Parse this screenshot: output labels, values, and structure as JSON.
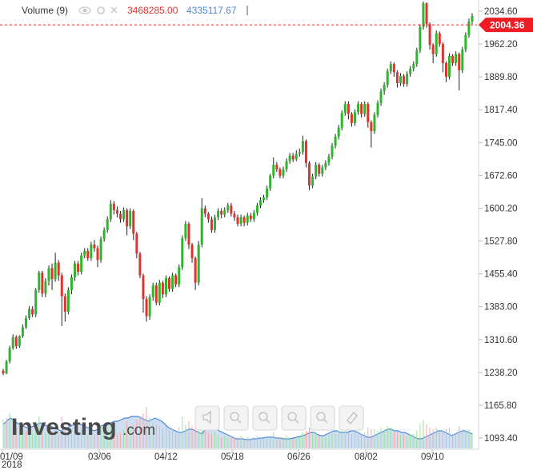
{
  "chart_data": {
    "type": "candlestick",
    "y_ticks": [
      "2034.60",
      "1962.20",
      "1889.80",
      "1817.40",
      "1745.00",
      "1672.60",
      "1600.20",
      "1527.80",
      "1455.40",
      "1383.00",
      "1310.60",
      "1238.20",
      "1165.80",
      "1093.40"
    ],
    "x_ticks": [
      "01/09",
      "03/06",
      "04/12",
      "05/18",
      "06/26",
      "08/02",
      "09/10"
    ],
    "year_label": "2018",
    "ylim": [
      1060,
      2060
    ],
    "last_price": "2004.36",
    "last_price_value": 2004.36,
    "volume": {
      "title": "Volume (9)",
      "value_down": "3468285.00",
      "value_up": "4335117.67"
    },
    "colors": {
      "up": "#2db52d",
      "down": "#e0322f",
      "wick": "#222222",
      "price_tag": "#ee1c24",
      "volume_area": "#c7d9f1",
      "volume_line": "#4a86d8"
    },
    "logo": {
      "main": "Investing",
      "suffix": ".com"
    },
    "candles": [
      [
        1242,
        1236,
        1246,
        1232
      ],
      [
        1236,
        1262,
        1266,
        1234
      ],
      [
        1262,
        1292,
        1297,
        1258
      ],
      [
        1292,
        1316,
        1322,
        1288
      ],
      [
        1316,
        1296,
        1320,
        1290
      ],
      [
        1296,
        1318,
        1320,
        1292
      ],
      [
        1318,
        1338,
        1344,
        1314
      ],
      [
        1338,
        1358,
        1364,
        1334
      ],
      [
        1358,
        1378,
        1384,
        1354
      ],
      [
        1378,
        1366,
        1384,
        1360
      ],
      [
        1366,
        1420,
        1424,
        1360
      ],
      [
        1420,
        1458,
        1462,
        1414
      ],
      [
        1458,
        1412,
        1462,
        1404
      ],
      [
        1412,
        1440,
        1446,
        1404
      ],
      [
        1440,
        1468,
        1474,
        1430
      ],
      [
        1468,
        1444,
        1478,
        1420
      ],
      [
        1444,
        1480,
        1502,
        1438
      ],
      [
        1480,
        1452,
        1486,
        1440
      ],
      [
        1452,
        1406,
        1458,
        1340
      ],
      [
        1406,
        1372,
        1412,
        1350
      ],
      [
        1372,
        1420,
        1426,
        1366
      ],
      [
        1420,
        1448,
        1454,
        1410
      ],
      [
        1448,
        1478,
        1484,
        1440
      ],
      [
        1478,
        1460,
        1484,
        1452
      ],
      [
        1460,
        1496,
        1502,
        1454
      ],
      [
        1496,
        1506,
        1512,
        1490
      ],
      [
        1506,
        1490,
        1512,
        1484
      ],
      [
        1490,
        1520,
        1526,
        1484
      ],
      [
        1520,
        1512,
        1530,
        1504
      ],
      [
        1512,
        1486,
        1518,
        1470
      ],
      [
        1486,
        1532,
        1538,
        1480
      ],
      [
        1532,
        1552,
        1558,
        1526
      ],
      [
        1552,
        1576,
        1582,
        1546
      ],
      [
        1576,
        1610,
        1618,
        1570
      ],
      [
        1610,
        1596,
        1616,
        1586
      ],
      [
        1596,
        1588,
        1604,
        1580
      ],
      [
        1588,
        1576,
        1594,
        1568
      ],
      [
        1576,
        1596,
        1602,
        1570
      ],
      [
        1596,
        1560,
        1600,
        1540
      ],
      [
        1560,
        1594,
        1600,
        1554
      ],
      [
        1594,
        1544,
        1598,
        1530
      ],
      [
        1544,
        1500,
        1548,
        1490
      ],
      [
        1500,
        1452,
        1504,
        1446
      ],
      [
        1452,
        1400,
        1456,
        1370
      ],
      [
        1400,
        1362,
        1406,
        1350
      ],
      [
        1362,
        1404,
        1410,
        1354
      ],
      [
        1404,
        1430,
        1436,
        1396
      ],
      [
        1430,
        1392,
        1436,
        1386
      ],
      [
        1392,
        1436,
        1442,
        1386
      ],
      [
        1436,
        1410,
        1440,
        1402
      ],
      [
        1410,
        1446,
        1452,
        1404
      ],
      [
        1446,
        1422,
        1450,
        1416
      ],
      [
        1422,
        1452,
        1458,
        1416
      ],
      [
        1452,
        1432,
        1456,
        1426
      ],
      [
        1432,
        1470,
        1476,
        1426
      ],
      [
        1470,
        1534,
        1540,
        1464
      ],
      [
        1534,
        1566,
        1572,
        1528
      ],
      [
        1566,
        1520,
        1570,
        1510
      ],
      [
        1520,
        1490,
        1524,
        1480
      ],
      [
        1490,
        1436,
        1494,
        1420
      ],
      [
        1436,
        1520,
        1528,
        1430
      ],
      [
        1520,
        1600,
        1622,
        1514
      ],
      [
        1600,
        1588,
        1606,
        1580
      ],
      [
        1588,
        1576,
        1592,
        1568
      ],
      [
        1576,
        1552,
        1582,
        1546
      ],
      [
        1552,
        1580,
        1586,
        1546
      ],
      [
        1580,
        1594,
        1600,
        1574
      ],
      [
        1594,
        1586,
        1600,
        1578
      ],
      [
        1586,
        1596,
        1602,
        1580
      ],
      [
        1596,
        1606,
        1612,
        1590
      ],
      [
        1606,
        1588,
        1612,
        1582
      ],
      [
        1588,
        1580,
        1594,
        1572
      ],
      [
        1580,
        1566,
        1586,
        1560
      ],
      [
        1566,
        1580,
        1586,
        1560
      ],
      [
        1580,
        1568,
        1584,
        1560
      ],
      [
        1568,
        1584,
        1590,
        1562
      ],
      [
        1584,
        1576,
        1590,
        1570
      ],
      [
        1576,
        1590,
        1596,
        1570
      ],
      [
        1590,
        1606,
        1612,
        1584
      ],
      [
        1606,
        1618,
        1624,
        1600
      ],
      [
        1618,
        1624,
        1630,
        1612
      ],
      [
        1624,
        1644,
        1650,
        1618
      ],
      [
        1644,
        1672,
        1676,
        1638
      ],
      [
        1672,
        1696,
        1712,
        1666
      ],
      [
        1696,
        1686,
        1702,
        1680
      ],
      [
        1686,
        1672,
        1690,
        1666
      ],
      [
        1672,
        1686,
        1692,
        1666
      ],
      [
        1686,
        1704,
        1710,
        1680
      ],
      [
        1704,
        1716,
        1722,
        1698
      ],
      [
        1716,
        1708,
        1722,
        1702
      ],
      [
        1708,
        1720,
        1728,
        1704
      ],
      [
        1720,
        1724,
        1732,
        1714
      ],
      [
        1724,
        1748,
        1760,
        1718
      ],
      [
        1748,
        1700,
        1752,
        1690
      ],
      [
        1700,
        1650,
        1704,
        1640
      ],
      [
        1650,
        1670,
        1676,
        1644
      ],
      [
        1670,
        1696,
        1702,
        1664
      ],
      [
        1696,
        1676,
        1700,
        1670
      ],
      [
        1676,
        1690,
        1696,
        1670
      ],
      [
        1690,
        1700,
        1706,
        1684
      ],
      [
        1700,
        1714,
        1720,
        1694
      ],
      [
        1714,
        1738,
        1744,
        1708
      ],
      [
        1738,
        1758,
        1764,
        1732
      ],
      [
        1758,
        1778,
        1784,
        1752
      ],
      [
        1778,
        1810,
        1816,
        1772
      ],
      [
        1810,
        1830,
        1836,
        1804
      ],
      [
        1830,
        1808,
        1836,
        1796
      ],
      [
        1808,
        1788,
        1812,
        1780
      ],
      [
        1788,
        1812,
        1818,
        1782
      ],
      [
        1812,
        1830,
        1836,
        1806
      ],
      [
        1830,
        1808,
        1834,
        1800
      ],
      [
        1808,
        1830,
        1836,
        1802
      ],
      [
        1830,
        1790,
        1834,
        1778
      ],
      [
        1790,
        1770,
        1794,
        1734
      ],
      [
        1770,
        1806,
        1812,
        1764
      ],
      [
        1806,
        1832,
        1838,
        1800
      ],
      [
        1832,
        1858,
        1864,
        1826
      ],
      [
        1858,
        1872,
        1878,
        1850
      ],
      [
        1872,
        1902,
        1908,
        1866
      ],
      [
        1902,
        1918,
        1924,
        1896
      ],
      [
        1918,
        1900,
        1922,
        1890
      ],
      [
        1900,
        1876,
        1904,
        1866
      ],
      [
        1876,
        1892,
        1898,
        1870
      ],
      [
        1892,
        1874,
        1896,
        1868
      ],
      [
        1874,
        1896,
        1902,
        1868
      ],
      [
        1896,
        1908,
        1914,
        1890
      ],
      [
        1908,
        1918,
        1924,
        1902
      ],
      [
        1918,
        1948,
        1954,
        1912
      ],
      [
        1948,
        2000,
        2006,
        1942
      ],
      [
        2000,
        2052,
        2056,
        1994
      ],
      [
        2052,
        2006,
        2054,
        1998
      ],
      [
        2006,
        1960,
        2010,
        1950
      ],
      [
        1960,
        1940,
        1964,
        1920
      ],
      [
        1940,
        1986,
        1992,
        1934
      ],
      [
        1986,
        1962,
        1990,
        1956
      ],
      [
        1962,
        1920,
        1966,
        1900
      ],
      [
        1920,
        1890,
        1924,
        1878
      ],
      [
        1890,
        1936,
        1942,
        1884
      ],
      [
        1936,
        1920,
        1940,
        1914
      ],
      [
        1920,
        1940,
        1946,
        1914
      ],
      [
        1940,
        1904,
        1944,
        1860
      ],
      [
        1904,
        1950,
        1956,
        1898
      ],
      [
        1950,
        1982,
        1988,
        1944
      ],
      [
        1982,
        2012,
        2018,
        1976
      ],
      [
        2012,
        2024,
        2030,
        2006
      ]
    ],
    "vol_bars": [
      [
        36,
        1
      ],
      [
        38,
        0
      ],
      [
        44,
        1
      ],
      [
        30,
        0
      ],
      [
        26,
        0
      ],
      [
        24,
        1
      ],
      [
        22,
        1
      ],
      [
        22,
        0
      ],
      [
        24,
        1
      ],
      [
        18,
        1
      ],
      [
        34,
        1
      ],
      [
        40,
        1
      ],
      [
        20,
        0
      ],
      [
        20,
        1
      ],
      [
        28,
        1
      ],
      [
        22,
        0
      ],
      [
        30,
        1
      ],
      [
        18,
        0
      ],
      [
        40,
        0
      ],
      [
        26,
        0
      ],
      [
        20,
        1
      ],
      [
        22,
        1
      ],
      [
        30,
        1
      ],
      [
        18,
        0
      ],
      [
        24,
        1
      ],
      [
        20,
        1
      ],
      [
        16,
        0
      ],
      [
        22,
        1
      ],
      [
        18,
        0
      ],
      [
        26,
        0
      ],
      [
        28,
        1
      ],
      [
        24,
        1
      ],
      [
        22,
        1
      ],
      [
        30,
        1
      ],
      [
        26,
        0
      ],
      [
        18,
        0
      ],
      [
        20,
        0
      ],
      [
        24,
        1
      ],
      [
        34,
        0
      ],
      [
        26,
        1
      ],
      [
        30,
        0
      ],
      [
        36,
        0
      ],
      [
        38,
        0
      ],
      [
        44,
        0
      ],
      [
        52,
        0
      ],
      [
        38,
        1
      ],
      [
        32,
        1
      ],
      [
        30,
        0
      ],
      [
        28,
        1
      ],
      [
        24,
        0
      ],
      [
        28,
        1
      ],
      [
        22,
        0
      ],
      [
        24,
        1
      ],
      [
        20,
        0
      ],
      [
        26,
        1
      ],
      [
        40,
        1
      ],
      [
        30,
        1
      ],
      [
        34,
        0
      ],
      [
        28,
        0
      ],
      [
        42,
        0
      ],
      [
        44,
        1
      ],
      [
        38,
        1
      ],
      [
        22,
        0
      ],
      [
        20,
        0
      ],
      [
        18,
        0
      ],
      [
        20,
        1
      ],
      [
        16,
        1
      ],
      [
        14,
        0
      ],
      [
        16,
        1
      ],
      [
        14,
        1
      ],
      [
        16,
        0
      ],
      [
        14,
        0
      ],
      [
        14,
        0
      ],
      [
        16,
        1
      ],
      [
        12,
        0
      ],
      [
        14,
        1
      ],
      [
        12,
        0
      ],
      [
        14,
        1
      ],
      [
        16,
        1
      ],
      [
        14,
        1
      ],
      [
        12,
        1
      ],
      [
        14,
        1
      ],
      [
        16,
        1
      ],
      [
        20,
        1
      ],
      [
        14,
        0
      ],
      [
        14,
        0
      ],
      [
        14,
        1
      ],
      [
        16,
        1
      ],
      [
        14,
        1
      ],
      [
        12,
        0
      ],
      [
        14,
        1
      ],
      [
        14,
        1
      ],
      [
        20,
        1
      ],
      [
        22,
        0
      ],
      [
        26,
        0
      ],
      [
        18,
        1
      ],
      [
        20,
        1
      ],
      [
        16,
        0
      ],
      [
        16,
        1
      ],
      [
        14,
        1
      ],
      [
        16,
        1
      ],
      [
        18,
        1
      ],
      [
        18,
        1
      ],
      [
        22,
        1
      ],
      [
        26,
        1
      ],
      [
        22,
        1
      ],
      [
        20,
        0
      ],
      [
        18,
        0
      ],
      [
        20,
        1
      ],
      [
        22,
        1
      ],
      [
        18,
        0
      ],
      [
        20,
        1
      ],
      [
        26,
        0
      ],
      [
        24,
        0
      ],
      [
        24,
        1
      ],
      [
        22,
        1
      ],
      [
        26,
        1
      ],
      [
        24,
        1
      ],
      [
        28,
        1
      ],
      [
        26,
        1
      ],
      [
        20,
        0
      ],
      [
        20,
        0
      ],
      [
        16,
        1
      ],
      [
        18,
        0
      ],
      [
        16,
        1
      ],
      [
        18,
        1
      ],
      [
        18,
        1
      ],
      [
        22,
        1
      ],
      [
        30,
        1
      ],
      [
        36,
        1
      ],
      [
        30,
        0
      ],
      [
        26,
        0
      ],
      [
        24,
        0
      ],
      [
        26,
        1
      ],
      [
        20,
        0
      ],
      [
        22,
        0
      ],
      [
        24,
        0
      ],
      [
        26,
        1
      ],
      [
        18,
        0
      ],
      [
        20,
        1
      ],
      [
        28,
        0
      ],
      [
        24,
        1
      ],
      [
        22,
        1
      ],
      [
        24,
        1
      ],
      [
        20,
        1
      ]
    ],
    "vol_area": [
      30,
      34,
      38,
      36,
      32,
      30,
      28,
      26,
      26,
      28,
      30,
      32,
      30,
      28,
      28,
      26,
      24,
      22,
      24,
      26,
      28,
      30,
      32,
      30,
      28,
      26,
      24,
      22,
      24,
      28,
      30,
      32,
      32,
      34,
      34,
      36,
      38,
      38,
      40,
      40,
      40,
      38,
      36,
      34,
      36,
      38,
      36,
      34,
      30,
      26,
      24,
      22,
      20,
      20,
      22,
      24,
      24,
      22,
      20,
      18,
      26,
      32,
      30,
      26,
      22,
      20,
      18,
      16,
      14,
      12,
      12,
      12,
      11,
      11,
      12,
      12,
      13,
      13,
      14,
      14,
      14,
      13,
      13,
      12,
      12,
      12,
      13,
      14,
      15,
      16,
      18,
      20,
      20,
      18,
      16,
      16,
      18,
      20,
      22,
      22,
      20,
      20,
      20,
      22,
      22,
      20,
      18,
      16,
      14,
      14,
      16,
      18,
      20,
      22,
      24,
      24,
      22,
      22,
      20,
      20,
      18,
      16,
      14,
      12,
      12,
      14,
      16,
      18,
      20,
      22,
      22,
      20,
      18,
      16,
      18,
      20,
      22,
      22,
      20,
      18
    ]
  }
}
